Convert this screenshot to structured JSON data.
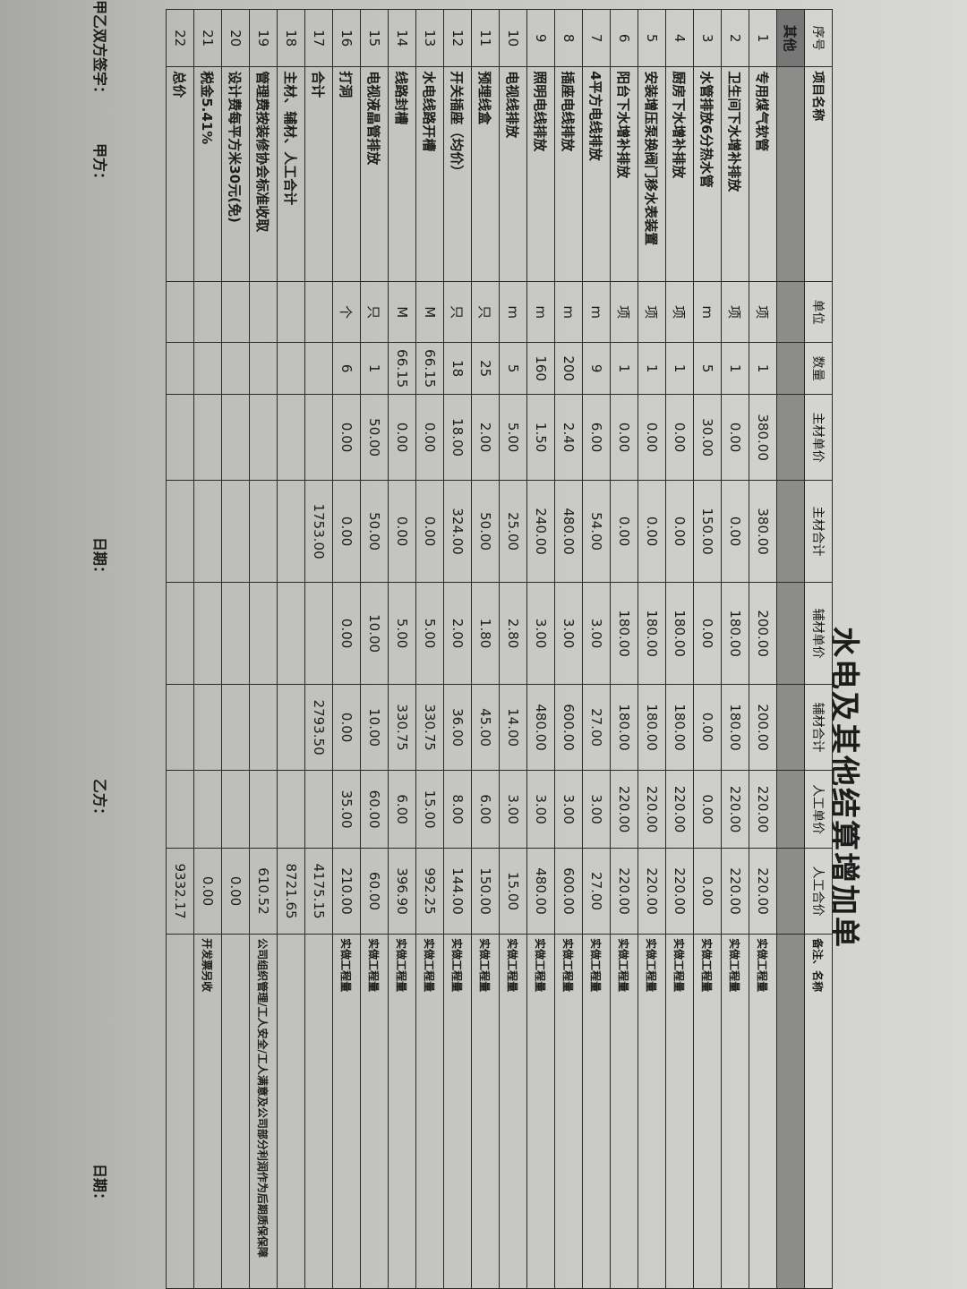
{
  "title": "水电及其他结算增加单",
  "headers": [
    "序号",
    "项目名称",
    "单位",
    "数量",
    "主材单价",
    "主材合计",
    "辅材单价",
    "辅材合计",
    "人工单价",
    "人工合价",
    "备注、名称"
  ],
  "group_label": "其他",
  "rows": [
    [
      "1",
      "专用煤气软管",
      "项",
      "1",
      "380.00",
      "380.00",
      "200.00",
      "200.00",
      "220.00",
      "220.00",
      "实做工程量"
    ],
    [
      "2",
      "卫生间下水增补排放",
      "项",
      "1",
      "0.00",
      "0.00",
      "180.00",
      "180.00",
      "220.00",
      "220.00",
      "实做工程量"
    ],
    [
      "3",
      "水管排放6分热水管",
      "m",
      "5",
      "30.00",
      "150.00",
      "0.00",
      "0.00",
      "0.00",
      "0.00",
      "实做工程量"
    ],
    [
      "4",
      "厨房下水增补排放",
      "项",
      "1",
      "0.00",
      "0.00",
      "180.00",
      "180.00",
      "220.00",
      "220.00",
      "实做工程量"
    ],
    [
      "5",
      "安装增压泵换阀门移水表装置",
      "项",
      "1",
      "0.00",
      "0.00",
      "180.00",
      "180.00",
      "220.00",
      "220.00",
      "实做工程量"
    ],
    [
      "6",
      "阳台下水增补排放",
      "项",
      "1",
      "0.00",
      "0.00",
      "180.00",
      "180.00",
      "220.00",
      "220.00",
      "实做工程量"
    ],
    [
      "7",
      "4平方电线排放",
      "m",
      "9",
      "6.00",
      "54.00",
      "3.00",
      "27.00",
      "3.00",
      "27.00",
      "实做工程量"
    ],
    [
      "8",
      "插座电线排放",
      "m",
      "200",
      "2.40",
      "480.00",
      "3.00",
      "600.00",
      "3.00",
      "600.00",
      "实做工程量"
    ],
    [
      "9",
      "照明电线排放",
      "m",
      "160",
      "1.50",
      "240.00",
      "3.00",
      "480.00",
      "3.00",
      "480.00",
      "实做工程量"
    ],
    [
      "10",
      "电视线排放",
      "m",
      "5",
      "5.00",
      "25.00",
      "2.80",
      "14.00",
      "3.00",
      "15.00",
      "实做工程量"
    ],
    [
      "11",
      "预埋线盒",
      "只",
      "25",
      "2.00",
      "50.00",
      "1.80",
      "45.00",
      "6.00",
      "150.00",
      "实做工程量"
    ],
    [
      "12",
      "开关插座（均价）",
      "只",
      "18",
      "18.00",
      "324.00",
      "2.00",
      "36.00",
      "8.00",
      "144.00",
      "实做工程量"
    ],
    [
      "13",
      "水电线路开槽",
      "M",
      "66.15",
      "0.00",
      "0.00",
      "5.00",
      "330.75",
      "15.00",
      "992.25",
      "实做工程量"
    ],
    [
      "14",
      "线路封槽",
      "M",
      "66.15",
      "0.00",
      "0.00",
      "5.00",
      "330.75",
      "6.00",
      "396.90",
      "实做工程量"
    ],
    [
      "15",
      "电视液晶管排放",
      "只",
      "1",
      "50.00",
      "50.00",
      "10.00",
      "10.00",
      "60.00",
      "60.00",
      "实做工程量"
    ],
    [
      "16",
      "打洞",
      "个",
      "6",
      "0.00",
      "0.00",
      "0.00",
      "0.00",
      "35.00",
      "210.00",
      "实做工程量"
    ],
    [
      "17",
      "合计",
      "",
      "",
      "",
      "1753.00",
      "",
      "2793.50",
      "",
      "4175.15",
      ""
    ],
    [
      "18",
      "主材、辅材、人工合计",
      "",
      "",
      "",
      "",
      "",
      "",
      "",
      "8721.65",
      ""
    ],
    [
      "19",
      "管理费按装修协会标准收取",
      "",
      "",
      "",
      "",
      "",
      "",
      "",
      "610.52",
      "公司组织管理/工人安全/工人满意及公司部分利润作为后期质保保障"
    ],
    [
      "20",
      "设计费每平方米30元(免)",
      "",
      "",
      "",
      "",
      "",
      "",
      "",
      "0.00",
      ""
    ],
    [
      "21",
      "税金5.41%",
      "",
      "",
      "",
      "",
      "",
      "",
      "",
      "0.00",
      "开发票另收"
    ],
    [
      "22",
      "总价",
      "",
      "",
      "",
      "",
      "",
      "",
      "",
      "9332.17",
      ""
    ]
  ],
  "signature": {
    "both_parties": "甲乙双方签字：",
    "party_a": "甲方：",
    "date_a": "日期：",
    "party_b": "乙方：",
    "date_b": "日期："
  }
}
